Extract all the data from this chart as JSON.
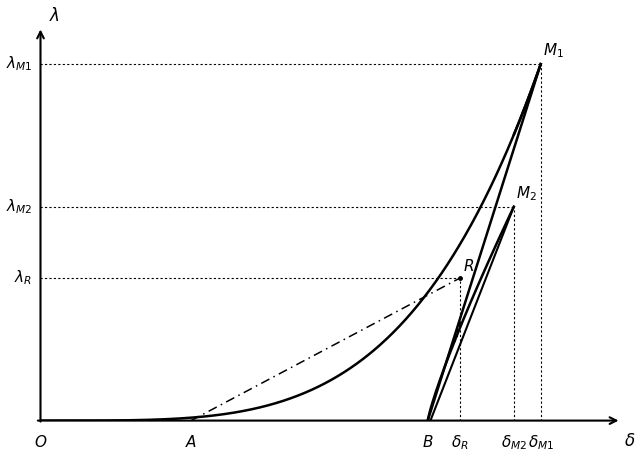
{
  "xlim": [
    0,
    1.08
  ],
  "ylim": [
    0,
    1.05
  ],
  "delta_A": 0.28,
  "delta_B": 0.72,
  "delta_R": 0.78,
  "delta_M2": 0.88,
  "delta_M1": 0.93,
  "lambda_M1": 0.95,
  "lambda_M2": 0.57,
  "lambda_R": 0.38,
  "background": "#ffffff",
  "curve_color": "#000000",
  "label_fontsize": 11,
  "main_curve_exp": 2.2,
  "main_curve_xexp": 0.55
}
